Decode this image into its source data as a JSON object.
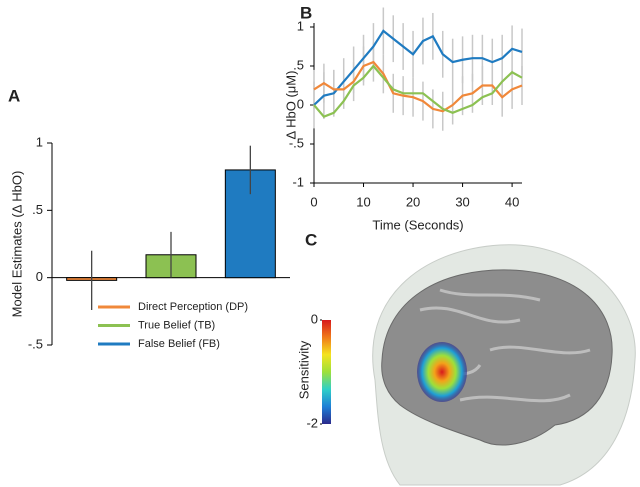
{
  "chart_data": [
    {
      "type": "bar",
      "panel": "A",
      "ylabel": "Model Estimates (Δ HbO)",
      "categories": [
        null,
        null,
        null
      ],
      "values": [
        -0.02,
        0.17,
        0.8
      ],
      "errors": [
        0.22,
        0.17,
        0.18
      ],
      "colors": [
        "#f0883a",
        "#8cc152",
        "#1f7bc1"
      ],
      "legend_labels": [
        "Direct Perception (DP)",
        "True Belief (TB)",
        "False Belief (FB)"
      ],
      "ylim": [
        -0.5,
        1
      ],
      "yticks": [
        {
          "value": -0.5,
          "label": "-.5"
        },
        0,
        {
          "value": 0.5,
          "label": ".5"
        },
        1
      ]
    },
    {
      "type": "line",
      "panel": "B",
      "ylabel": "Δ HbO (μM)",
      "xlabel": "Time (Seconds)",
      "x": [
        0,
        2,
        4,
        6,
        8,
        10,
        12,
        14,
        16,
        18,
        20,
        22,
        24,
        26,
        28,
        30,
        32,
        34,
        36,
        38,
        40,
        42
      ],
      "series": [
        {
          "name": "False Belief (FB)",
          "color": "#1f7bc1",
          "values": [
            0,
            0.12,
            0.15,
            0.3,
            0.45,
            0.6,
            0.75,
            0.95,
            0.85,
            0.75,
            0.65,
            0.82,
            0.88,
            0.65,
            0.55,
            0.58,
            0.6,
            0.6,
            0.55,
            0.6,
            0.72,
            0.68
          ],
          "errors": [
            0.3,
            0.3,
            0.3,
            0.3,
            0.3,
            0.3,
            0.3,
            0.3,
            0.3,
            0.3,
            0.3,
            0.3,
            0.3,
            0.3,
            0.3,
            0.3,
            0.3,
            0.3,
            0.3,
            0.3,
            0.3,
            0.3
          ]
        },
        {
          "name": "Direct Perception (DP)",
          "color": "#f0883a",
          "values": [
            0.2,
            0.28,
            0.2,
            0.2,
            0.3,
            0.5,
            0.55,
            0.4,
            0.15,
            0.12,
            0.1,
            0.05,
            -0.05,
            -0.08,
            0,
            0.12,
            0.15,
            0.25,
            0.25,
            0.1,
            0.2,
            0.25
          ],
          "errors": [
            0.25,
            0.25,
            0.25,
            0.25,
            0.25,
            0.25,
            0.25,
            0.25,
            0.25,
            0.25,
            0.25,
            0.25,
            0.25,
            0.25,
            0.25,
            0.25,
            0.25,
            0.25,
            0.25,
            0.25,
            0.25,
            0.25
          ]
        },
        {
          "name": "True Belief (TB)",
          "color": "#8cc152",
          "values": [
            0,
            -0.15,
            -0.1,
            0.05,
            0.25,
            0.35,
            0.5,
            0.35,
            0.2,
            0.15,
            0.15,
            0.15,
            0.05,
            -0.05,
            -0.1,
            -0.05,
            0,
            0.1,
            0.15,
            0.3,
            0.42,
            0.35
          ]
        }
      ],
      "xlim": [
        0,
        42
      ],
      "xticks": [
        0,
        10,
        20,
        30,
        40
      ],
      "ylim": [
        -1,
        1
      ],
      "yticks": [
        -1,
        {
          "value": -0.5,
          "label": "-.5"
        },
        0,
        {
          "value": 0.5,
          "label": ".5"
        },
        1
      ]
    },
    {
      "type": "colorbar",
      "panel": "C",
      "label": "Sensitivity",
      "lim": [
        -2,
        0
      ],
      "ticks": [
        -2,
        0
      ],
      "colors": [
        "#2b2a8c",
        "#1e7fd6",
        "#2fd0c8",
        "#9ee03a",
        "#f4e31f",
        "#f07a1a",
        "#d7191c"
      ]
    }
  ]
}
